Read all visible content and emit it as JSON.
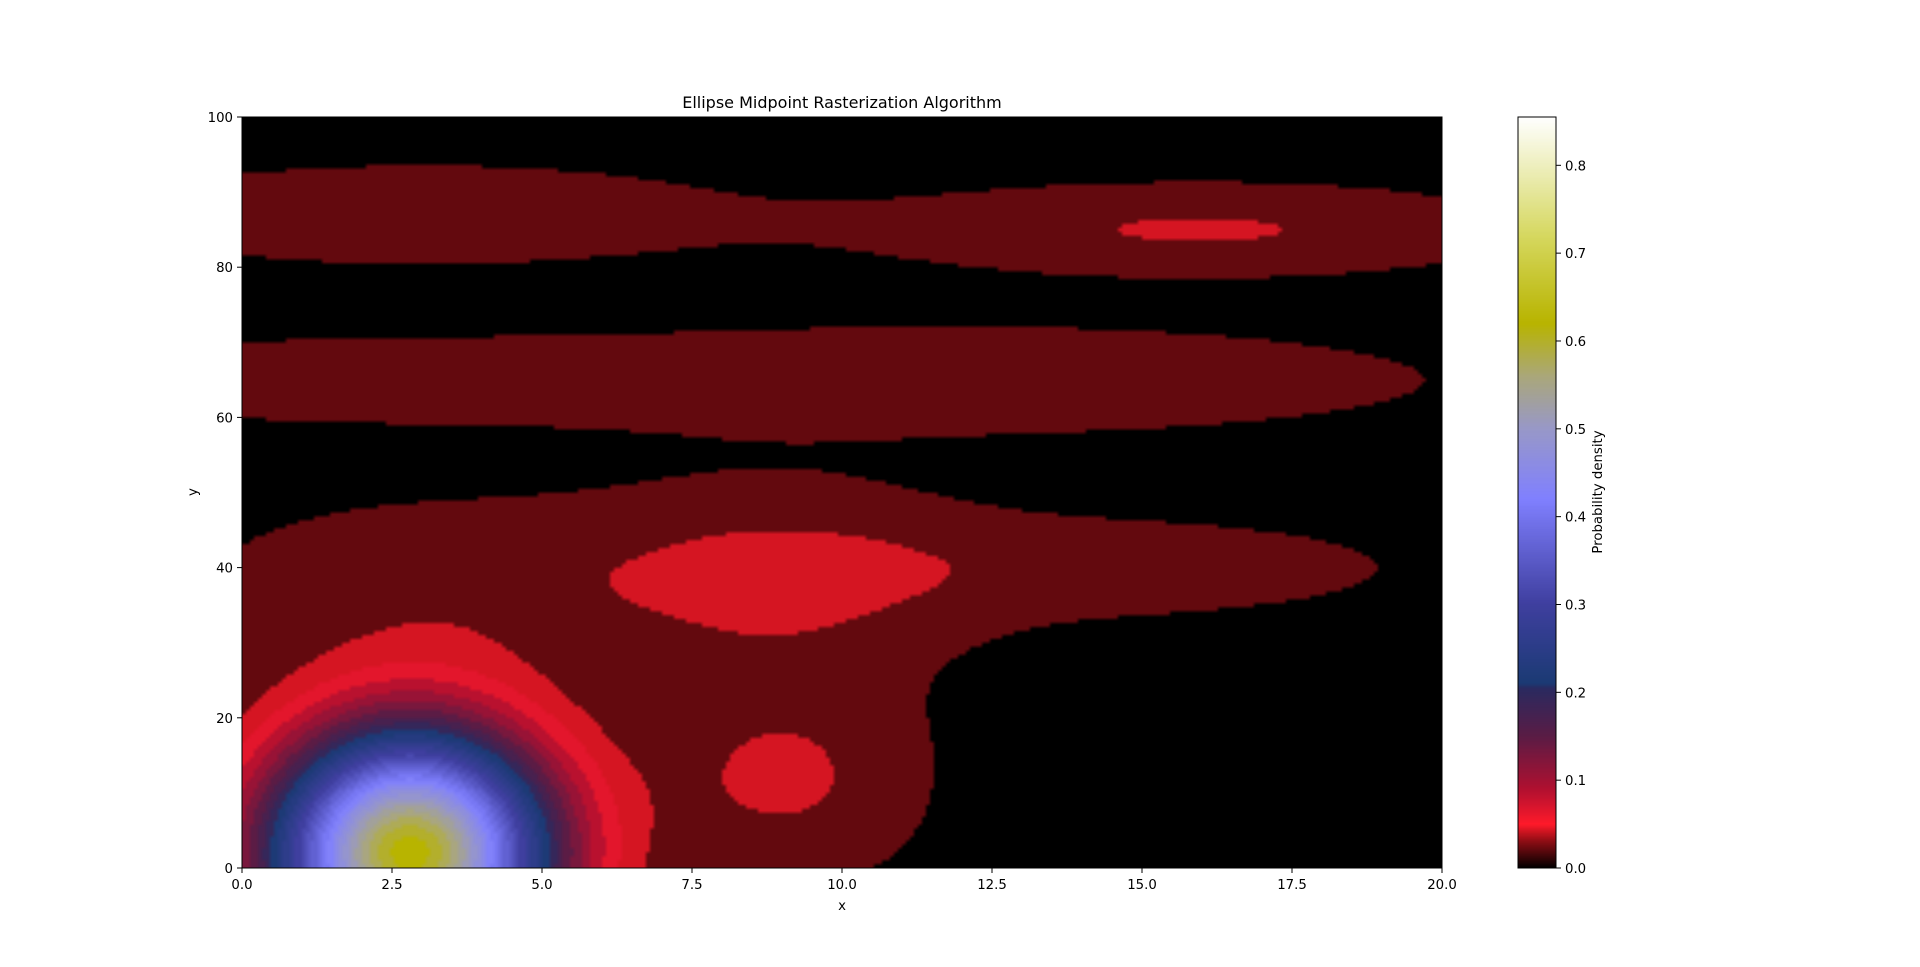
{
  "chart_data": {
    "type": "heatmap",
    "subtype": "filled-contour",
    "title": "Ellipse Midpoint Rasterization Algorithm",
    "xlabel": "x",
    "ylabel": "y",
    "xlim": [
      0,
      20
    ],
    "ylim": [
      0,
      100
    ],
    "x_ticks": [
      0,
      2.5,
      5,
      7.5,
      10,
      12.5,
      15,
      17.5,
      20
    ],
    "x_tick_labels": [
      "0.0",
      "2.5",
      "5.0",
      "7.5",
      "10.0",
      "12.5",
      "15.0",
      "17.5",
      "20.0"
    ],
    "y_ticks": [
      0,
      20,
      40,
      60,
      80,
      100
    ],
    "y_tick_labels": [
      "0",
      "20",
      "40",
      "60",
      "80",
      "100"
    ],
    "grid": false,
    "colormap": "gist_stern",
    "colorbar": {
      "label": "Probability density",
      "range": [
        0,
        0.855
      ],
      "ticks": [
        0,
        0.1,
        0.2,
        0.3,
        0.4,
        0.5,
        0.6,
        0.7,
        0.8
      ],
      "tick_labels": [
        "0.0",
        "0.1",
        "0.2",
        "0.3",
        "0.4",
        "0.5",
        "0.6",
        "0.7",
        "0.8"
      ],
      "colors": [
        {
          "v": 0.0,
          "color": "#000000"
        },
        {
          "v": 0.03,
          "color": "#8b0d14"
        },
        {
          "v": 0.05,
          "color": "#ff1a2a"
        },
        {
          "v": 0.09,
          "color": "#b01030"
        },
        {
          "v": 0.15,
          "color": "#5a1c45"
        },
        {
          "v": 0.205,
          "color": "#2a2a60"
        },
        {
          "v": 0.21,
          "color": "#1b3a74"
        },
        {
          "v": 0.3,
          "color": "#3f3f9f"
        },
        {
          "v": 0.42,
          "color": "#8080ff"
        },
        {
          "v": 0.5,
          "color": "#9898c8"
        },
        {
          "v": 0.56,
          "color": "#aaa77a"
        },
        {
          "v": 0.62,
          "color": "#b8b400"
        },
        {
          "v": 0.72,
          "color": "#d6d860"
        },
        {
          "v": 0.855,
          "color": "#ffffff"
        }
      ]
    },
    "density_components": [
      {
        "x": 2.8,
        "y": 2,
        "sx": 1.55,
        "sy": 11,
        "amp": 0.62
      },
      {
        "x": 9.0,
        "y": 12,
        "sx": 1.6,
        "sy": 9,
        "amp": 0.035
      },
      {
        "x": 9.0,
        "y": 38,
        "sx": 2.2,
        "sy": 9,
        "amp": 0.03
      },
      {
        "x": 16.0,
        "y": 85,
        "sx": 3.5,
        "sy": 4,
        "amp": 0.033
      },
      {
        "x": 3.0,
        "y": 87,
        "sx": 4.0,
        "sy": 5,
        "amp": 0.022
      },
      {
        "x": 12.0,
        "y": 65,
        "sx": 5.5,
        "sy": 5,
        "amp": 0.025
      },
      {
        "x": 1.0,
        "y": 65,
        "sx": 4.0,
        "sy": 4,
        "amp": 0.018
      },
      {
        "x": 3.5,
        "y": 38,
        "sx": 3.0,
        "sy": 8,
        "amp": 0.022
      },
      {
        "x": 14.0,
        "y": 40,
        "sx": 4.0,
        "sy": 5,
        "amp": 0.02
      }
    ],
    "density_floor": 0.012
  }
}
